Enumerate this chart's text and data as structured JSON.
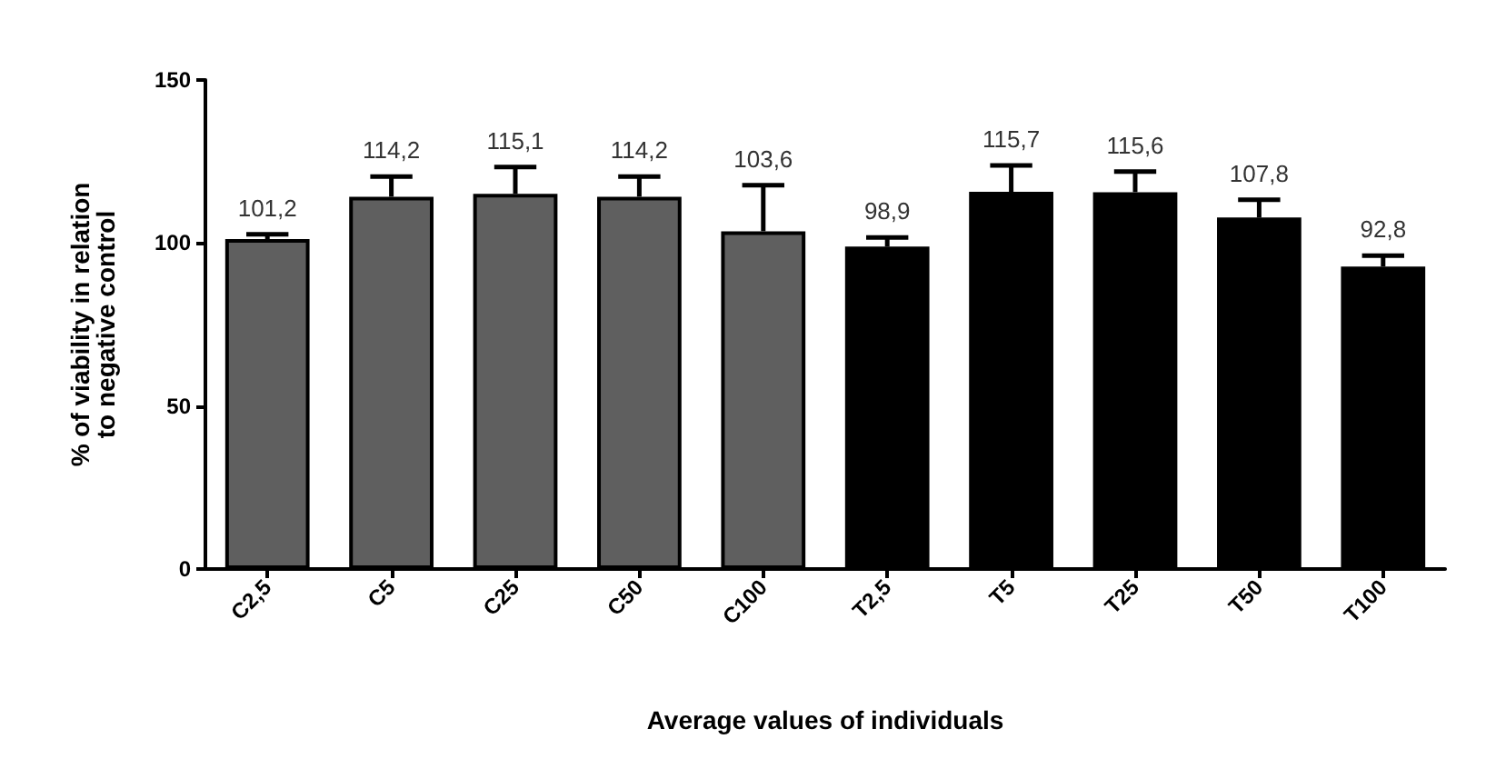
{
  "chart_data": {
    "type": "bar",
    "xlabel": "Average values of individuals",
    "ylabel": "% of viability in relation\nto negative control",
    "categories": [
      "C2,5",
      "C5",
      "C25",
      "C50",
      "C100",
      "T2,5",
      "T5",
      "T25",
      "T50",
      "T100"
    ],
    "values": [
      101.2,
      114.2,
      115.1,
      114.2,
      103.6,
      98.9,
      115.7,
      115.6,
      107.8,
      92.8
    ],
    "colors": [
      "#5f5f5f",
      "#5f5f5f",
      "#5f5f5f",
      "#5f5f5f",
      "#5f5f5f",
      "#000000",
      "#000000",
      "#000000",
      "#000000",
      "#000000"
    ],
    "errors": [
      [
        101.2,
        102.7
      ],
      [
        114.2,
        120.4
      ],
      [
        115.1,
        123.3
      ],
      [
        114.2,
        120.4
      ],
      [
        103.6,
        117.7
      ],
      [
        98.9,
        101.7
      ],
      [
        115.7,
        123.8
      ],
      [
        115.6,
        121.9
      ],
      [
        107.8,
        113.3
      ],
      [
        92.8,
        96.1
      ]
    ],
    "value_labels": [
      "101,2",
      "114,2",
      "115,1",
      "114,2",
      "103,6",
      "98,9",
      "115,7",
      "115,6",
      "107,8",
      "92,8"
    ],
    "ylim": [
      0,
      150
    ],
    "yticks": [
      0,
      50,
      100,
      150
    ],
    "grid": false
  }
}
